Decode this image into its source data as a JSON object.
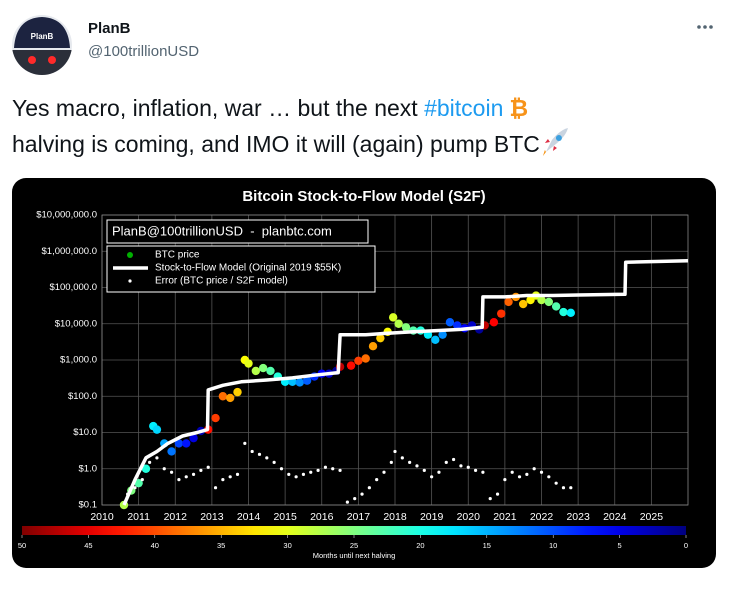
{
  "user": {
    "name": "PlanB",
    "handle": "@100trillionUSD",
    "avatar_text": "PlanB"
  },
  "tweet": {
    "text_1": "Yes macro, inflation, war … but the next ",
    "hashtag": "#bitcoin",
    "emoji": "₿",
    "text_2": "halving is coming, and IMO it will (again) pump BTC"
  },
  "chart_data": {
    "type": "scatter",
    "title": "Bitcoin Stock-to-Flow Model (S2F)",
    "subtitle": "PlanB@100trillionUSD  -  planbtc.com",
    "log_y": true,
    "grid": true,
    "xlim": [
      2010,
      2026
    ],
    "xticks": [
      2010,
      2011,
      2012,
      2013,
      2014,
      2015,
      2016,
      2017,
      2018,
      2019,
      2020,
      2021,
      2022,
      2023,
      2024,
      2025
    ],
    "ylim": [
      0.1,
      10000000
    ],
    "yticks": [
      {
        "value": 0.1,
        "label": "$0.1"
      },
      {
        "value": 1,
        "label": "$1.0"
      },
      {
        "value": 10,
        "label": "$10.0"
      },
      {
        "value": 100,
        "label": "$100.0"
      },
      {
        "value": 1000,
        "label": "$1,000.0"
      },
      {
        "value": 10000,
        "label": "$10,000.0"
      },
      {
        "value": 100000,
        "label": "$100,000.0"
      },
      {
        "value": 1000000,
        "label": "$1,000,000.0"
      },
      {
        "value": 10000000,
        "label": "$10,000,000.0"
      }
    ],
    "colorbar_label": "Months until next halving",
    "clim": [
      50,
      0
    ],
    "cticks": [
      50,
      45,
      40,
      35,
      30,
      25,
      20,
      15,
      10,
      5,
      0
    ],
    "series": [
      {
        "name": "BTC price",
        "color": "#00b000",
        "kind": "points",
        "x": [
          2010.6,
          2010.8,
          2011.0,
          2011.2,
          2011.4,
          2011.5,
          2011.7,
          2011.9,
          2012.1,
          2012.3,
          2012.5,
          2012.7,
          2012.9,
          2013.1,
          2013.3,
          2013.5,
          2013.7,
          2013.9,
          2014.0,
          2014.2,
          2014.4,
          2014.6,
          2014.8,
          2015.0,
          2015.2,
          2015.4,
          2015.6,
          2015.8,
          2016.0,
          2016.2,
          2016.4,
          2016.5,
          2016.8,
          2017.0,
          2017.2,
          2017.4,
          2017.6,
          2017.8,
          2017.95,
          2018.1,
          2018.3,
          2018.5,
          2018.7,
          2018.9,
          2019.1,
          2019.3,
          2019.5,
          2019.7,
          2019.9,
          2020.1,
          2020.3,
          2020.45,
          2020.7,
          2020.9,
          2021.1,
          2021.3,
          2021.5,
          2021.7,
          2021.85,
          2022.0,
          2022.2,
          2022.4,
          2022.6,
          2022.8
        ],
        "values": [
          0.1,
          0.25,
          0.4,
          1,
          15,
          12,
          5,
          3,
          5,
          5,
          7,
          11,
          12,
          25,
          100,
          90,
          130,
          1000,
          800,
          500,
          600,
          500,
          350,
          250,
          250,
          240,
          270,
          350,
          420,
          420,
          500,
          650,
          700,
          950,
          1100,
          2400,
          4000,
          6000,
          15000,
          10000,
          8000,
          6500,
          6500,
          5000,
          3600,
          5000,
          11000,
          9000,
          7500,
          9000,
          7000,
          9000,
          11000,
          19000,
          40000,
          55000,
          35000,
          45000,
          60000,
          45000,
          40000,
          30000,
          21000,
          20000
        ],
        "months": [
          27.6,
          25,
          22.8,
          20.4,
          18,
          16.8,
          14.4,
          12,
          9.6,
          7.2,
          4.8,
          2.4,
          43,
          40.8,
          38.4,
          36,
          33.6,
          31.2,
          30,
          27.6,
          25.2,
          22.8,
          20.4,
          18,
          15.6,
          13.2,
          10.8,
          8.4,
          6,
          3.6,
          1.2,
          46.8,
          43.2,
          40.8,
          38.4,
          36,
          33.6,
          31.2,
          29.4,
          27.6,
          25.2,
          22.8,
          20.4,
          18,
          15.6,
          13.2,
          10.8,
          8.4,
          6,
          3.6,
          1.2,
          46.8,
          43.8,
          41.4,
          39,
          36.6,
          34.2,
          31.8,
          30,
          27.6,
          25.2,
          22.8,
          20.4,
          18
        ]
      },
      {
        "name": "Stock-to-Flow Model (Original 2019 $55K)",
        "color": "#ffffff",
        "kind": "line",
        "x": [
          2010.6,
          2010.9,
          2011.2,
          2011.5,
          2011.8,
          2012.2,
          2012.6,
          2012.88,
          2012.9,
          2013.3,
          2013.8,
          2014.5,
          2015.2,
          2015.8,
          2016.45,
          2016.5,
          2017.2,
          2017.8,
          2018.5,
          2019.2,
          2019.8,
          2020.38,
          2020.4,
          2021.0,
          2021.6,
          2022.3,
          2023.0,
          2024.28,
          2024.3,
          2026
        ],
        "values": [
          0.1,
          0.5,
          2,
          3,
          5,
          8,
          10,
          12,
          150,
          200,
          250,
          280,
          320,
          380,
          450,
          5000,
          5000,
          5500,
          6000,
          6500,
          7000,
          8000,
          55000,
          55000,
          60000,
          60000,
          62000,
          65000,
          500000,
          550000
        ]
      },
      {
        "name": "Error (BTC price / S2F model)",
        "color": "#ffffff",
        "kind": "dots",
        "x": [
          2010.7,
          2010.9,
          2011.1,
          2011.3,
          2011.5,
          2011.7,
          2011.9,
          2012.1,
          2012.3,
          2012.5,
          2012.7,
          2012.9,
          2013.1,
          2013.3,
          2013.5,
          2013.7,
          2013.9,
          2014.1,
          2014.3,
          2014.5,
          2014.7,
          2014.9,
          2015.1,
          2015.3,
          2015.5,
          2015.7,
          2015.9,
          2016.1,
          2016.3,
          2016.5,
          2016.7,
          2016.9,
          2017.1,
          2017.3,
          2017.5,
          2017.7,
          2017.9,
          2018.0,
          2018.2,
          2018.4,
          2018.6,
          2018.8,
          2019.0,
          2019.2,
          2019.4,
          2019.6,
          2019.8,
          2020.0,
          2020.2,
          2020.4,
          2020.6,
          2020.8,
          2021.0,
          2021.2,
          2021.4,
          2021.6,
          2021.8,
          2022.0,
          2022.2,
          2022.4,
          2022.6,
          2022.8
        ],
        "values": [
          0.2,
          0.3,
          0.5,
          1.5,
          2,
          1,
          0.8,
          0.5,
          0.6,
          0.7,
          0.9,
          1.1,
          0.3,
          0.5,
          0.6,
          0.7,
          5,
          3,
          2.5,
          2,
          1.5,
          1,
          0.7,
          0.6,
          0.7,
          0.8,
          0.9,
          1.1,
          1.0,
          0.9,
          0.12,
          0.15,
          0.2,
          0.3,
          0.5,
          0.8,
          1.5,
          3,
          2,
          1.5,
          1.2,
          0.9,
          0.6,
          0.8,
          1.5,
          1.8,
          1.2,
          1.1,
          0.9,
          0.8,
          0.15,
          0.2,
          0.5,
          0.8,
          0.6,
          0.7,
          1.0,
          0.8,
          0.6,
          0.4,
          0.3,
          0.3
        ]
      }
    ]
  }
}
